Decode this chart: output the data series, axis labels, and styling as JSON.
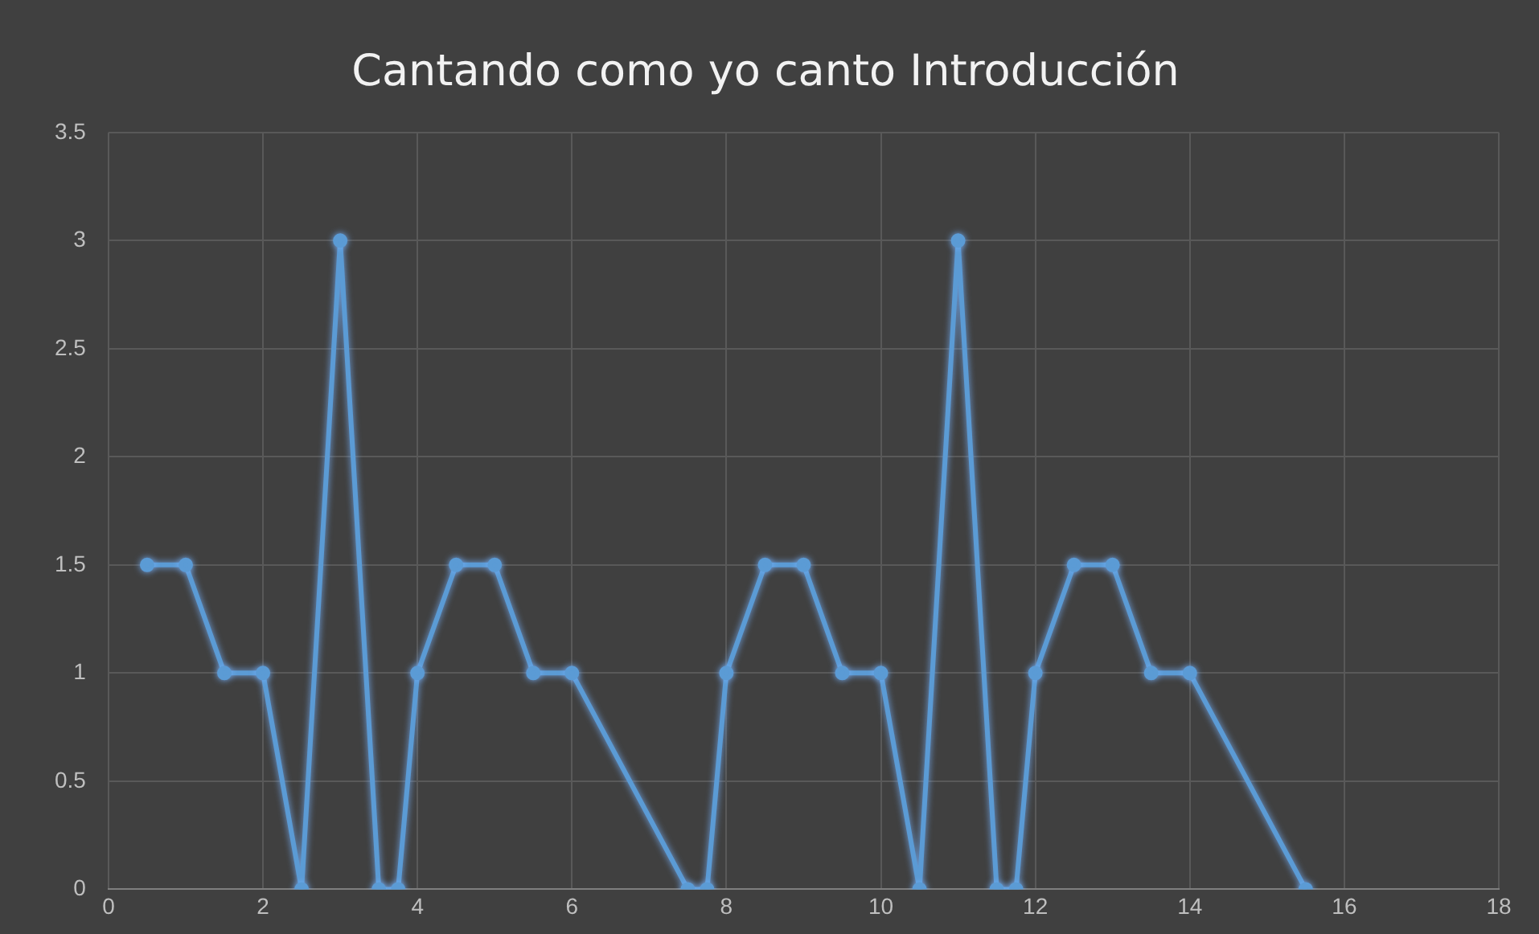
{
  "chart_data": {
    "type": "line",
    "title": "Cantando como yo canto Introducción",
    "series": [
      {
        "color": "#5b9bd5",
        "x": [
          0.5,
          1,
          1.5,
          2,
          2.5,
          3,
          3.5,
          3.75,
          4,
          4.5,
          5,
          5.5,
          6,
          7.5,
          7.75,
          8,
          8.5,
          9,
          9.5,
          10,
          10.5,
          11,
          11.5,
          11.75,
          12,
          12.5,
          13,
          13.5,
          14,
          15.5
        ],
        "values": [
          1.5,
          1.5,
          1,
          1,
          0,
          3,
          0,
          0,
          1,
          1.5,
          1.5,
          1,
          1,
          0,
          0,
          1,
          1.5,
          1.5,
          1,
          1,
          0,
          3,
          0,
          0,
          1,
          1.5,
          1.5,
          1,
          1,
          0
        ]
      }
    ],
    "xlim": [
      0,
      18
    ],
    "xticks": [
      0,
      2,
      4,
      6,
      8,
      10,
      12,
      14,
      16,
      18
    ],
    "ylim": [
      0,
      3.5
    ],
    "yticks": [
      0,
      0.5,
      1,
      1.5,
      2,
      2.5,
      3,
      3.5
    ],
    "grid": true,
    "marker": "circle",
    "line_style": "solid"
  }
}
